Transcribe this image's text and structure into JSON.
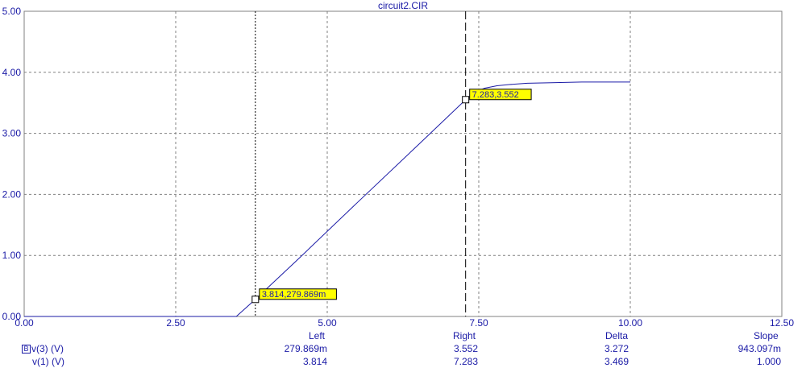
{
  "chart_data": {
    "type": "line",
    "title": "circuit2.CIR",
    "xlim": [
      0,
      12.5
    ],
    "ylim": [
      0,
      5
    ],
    "x_ticks": [
      "0.00",
      "2.50",
      "5.00",
      "7.50",
      "10.00",
      "12.50"
    ],
    "y_ticks": [
      "0.00",
      "1.00",
      "2.00",
      "3.00",
      "4.00",
      "5.00"
    ],
    "grid": true,
    "series": [
      {
        "name": "v(3) (V)",
        "color": "#1a1aa6",
        "x": [
          0,
          3.5,
          3.814,
          4.5,
          5.5,
          6.5,
          7.283,
          7.45,
          7.6,
          7.8,
          8.0,
          8.3,
          8.7,
          9.2,
          9.6,
          10.0
        ],
        "y": [
          0,
          0,
          0.2799,
          0.92,
          1.87,
          2.81,
          3.552,
          3.68,
          3.74,
          3.78,
          3.8,
          3.82,
          3.83,
          3.84,
          3.84,
          3.84
        ]
      }
    ],
    "cursors": [
      {
        "side": "left",
        "x": 3.814,
        "y": 0.279869,
        "label": "3.814,279.869m",
        "style": "dotted"
      },
      {
        "side": "right",
        "x": 7.283,
        "y": 3.552,
        "label": "7.283,3.552",
        "style": "dashed"
      }
    ]
  },
  "readout": {
    "headers": {
      "left": "Left",
      "right": "Right",
      "delta": "Delta",
      "slope": "Slope"
    },
    "rows": [
      {
        "icon": "B",
        "name": "v(3) (V)",
        "left": "279.869m",
        "right": "3.552",
        "delta": "3.272",
        "slope": "943.097m"
      },
      {
        "icon": "",
        "name": "v(1) (V)",
        "left": "3.814",
        "right": "7.283",
        "delta": "3.469",
        "slope": "1.000"
      }
    ]
  }
}
